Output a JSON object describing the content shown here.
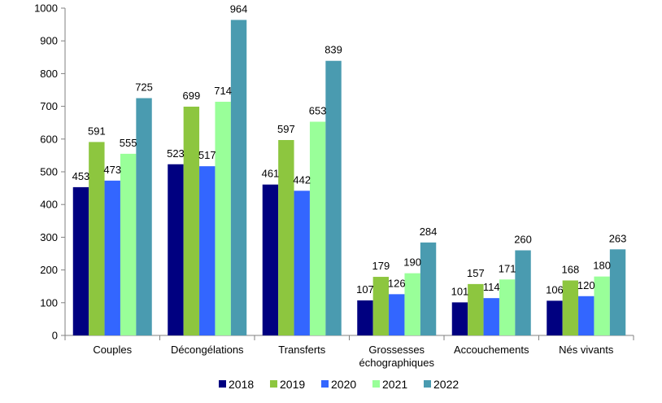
{
  "chart_data": {
    "type": "bar",
    "categories": [
      [
        "Couples"
      ],
      [
        "Décongélations"
      ],
      [
        "Transferts"
      ],
      [
        "Grossesses",
        "échographiques"
      ],
      [
        "Accouchements"
      ],
      [
        "Nés vivants"
      ]
    ],
    "series": [
      {
        "name": "2018",
        "color": "#000080",
        "values": [
          453,
          523,
          461,
          107,
          101,
          106
        ]
      },
      {
        "name": "2019",
        "color": "#8DC63F",
        "values": [
          591,
          699,
          597,
          179,
          157,
          168
        ]
      },
      {
        "name": "2020",
        "color": "#3366FF",
        "values": [
          473,
          517,
          442,
          126,
          114,
          120
        ]
      },
      {
        "name": "2021",
        "color": "#99FF99",
        "values": [
          555,
          714,
          653,
          190,
          171,
          180
        ]
      },
      {
        "name": "2022",
        "color": "#4A9BB0",
        "values": [
          725,
          964,
          839,
          284,
          260,
          263
        ]
      }
    ],
    "ylim": [
      0,
      1000
    ],
    "ytick_step": 100,
    "grid": false,
    "legend_position": "bottom"
  }
}
